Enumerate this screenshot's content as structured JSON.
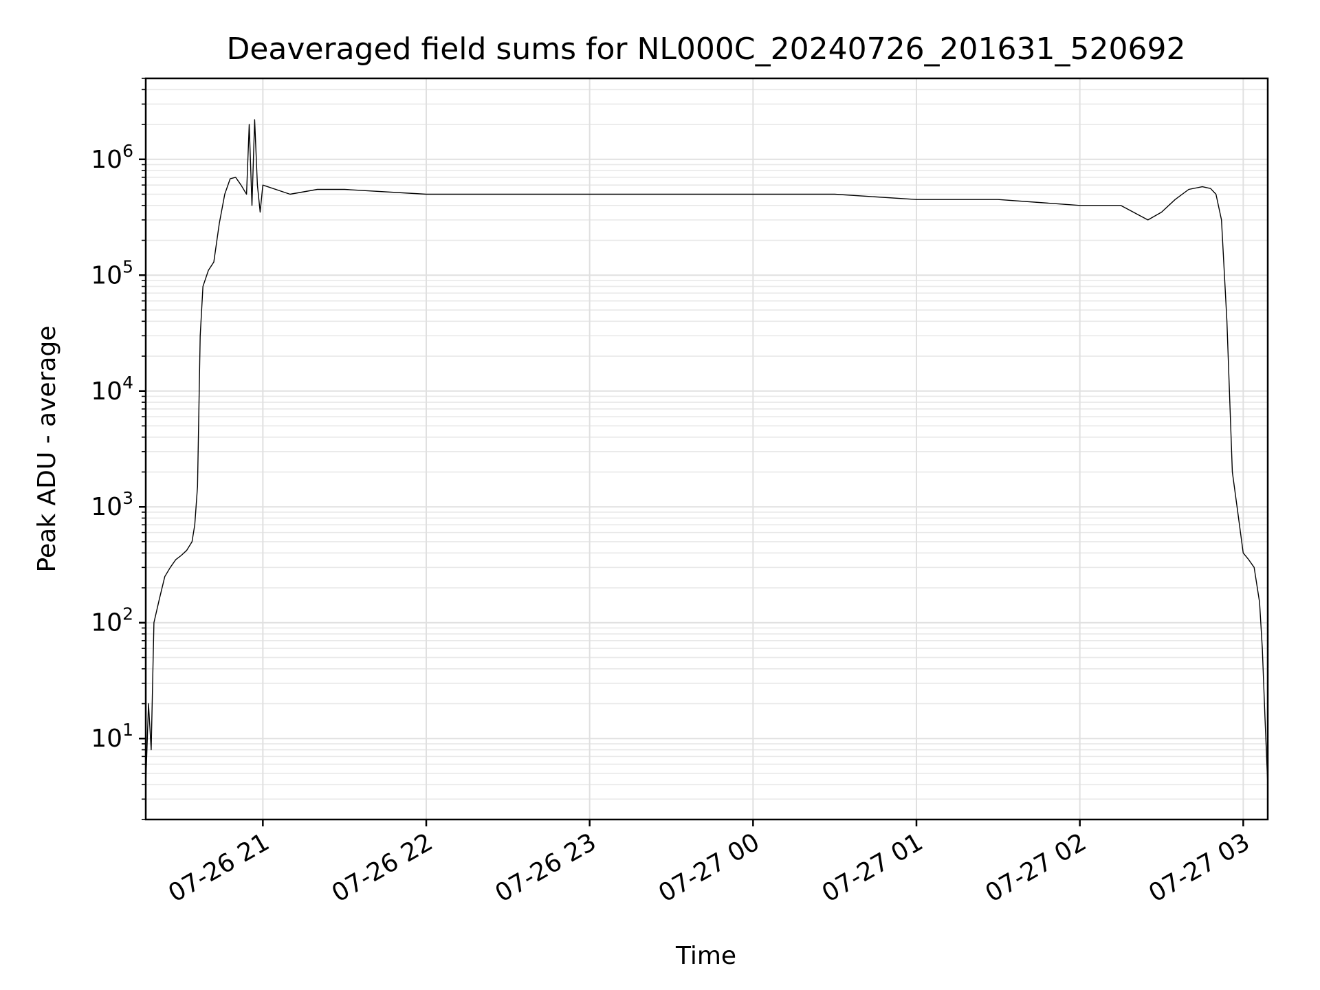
{
  "chart_data": {
    "type": "line",
    "title": "Deaveraged field sums for NL000C_20240726_201631_520692",
    "xlabel": "Time",
    "ylabel": "Peak ADU - average",
    "yscale": "log",
    "ylim": [
      2,
      5000000
    ],
    "xlim": [
      "07-26 20:17",
      "07-27 03:09"
    ],
    "x_ticks": [
      "07-26 21",
      "07-26 22",
      "07-26 23",
      "07-27 00",
      "07-27 01",
      "07-27 02",
      "07-27 03"
    ],
    "y_ticks": [
      {
        "base": "10",
        "exp": "1",
        "value": 10
      },
      {
        "base": "10",
        "exp": "2",
        "value": 100
      },
      {
        "base": "10",
        "exp": "3",
        "value": 1000
      },
      {
        "base": "10",
        "exp": "4",
        "value": 10000
      },
      {
        "base": "10",
        "exp": "5",
        "value": 100000
      },
      {
        "base": "10",
        "exp": "6",
        "value": 1000000
      }
    ],
    "grid": true,
    "legend": "none",
    "line_color": "#000000",
    "series": [
      {
        "x": [
          "07-26 20:17",
          "07-26 20:18",
          "07-26 20:19",
          "07-26 20:20",
          "07-26 20:22",
          "07-26 20:24",
          "07-26 20:26",
          "07-26 20:28",
          "07-26 20:30",
          "07-26 20:32",
          "07-26 20:34",
          "07-26 20:35",
          "07-26 20:36",
          "07-26 20:37",
          "07-26 20:38",
          "07-26 20:40",
          "07-26 20:42",
          "07-26 20:44",
          "07-26 20:46",
          "07-26 20:48",
          "07-26 20:50",
          "07-26 20:52",
          "07-26 20:54",
          "07-26 20:55",
          "07-26 20:56",
          "07-26 20:57",
          "07-26 20:58",
          "07-26 20:59",
          "07-26 21:00",
          "07-26 21:10",
          "07-26 21:20",
          "07-26 21:30",
          "07-26 22:00",
          "07-26 22:30",
          "07-26 23:00",
          "07-26 23:30",
          "07-27 00:00",
          "07-27 00:30",
          "07-27 01:00",
          "07-27 01:30",
          "07-27 02:00",
          "07-27 02:15",
          "07-27 02:25",
          "07-27 02:30",
          "07-27 02:35",
          "07-27 02:40",
          "07-27 02:45",
          "07-27 02:48",
          "07-27 02:50",
          "07-27 02:52",
          "07-27 02:54",
          "07-27 02:56",
          "07-27 02:58",
          "07-27 03:00",
          "07-27 03:02",
          "07-27 03:04",
          "07-27 03:06",
          "07-27 03:07",
          "07-27 03:08",
          "07-27 03:09"
        ],
        "y": [
          4,
          20,
          8,
          100,
          160,
          250,
          300,
          350,
          380,
          420,
          500,
          700,
          1500,
          30000,
          80000,
          110000,
          130000,
          280000,
          500000,
          680000,
          700000,
          600000,
          500000,
          2000000,
          400000,
          2200000,
          600000,
          350000,
          600000,
          500000,
          550000,
          550000,
          500000,
          500000,
          500000,
          500000,
          500000,
          500000,
          450000,
          450000,
          400000,
          400000,
          300000,
          350000,
          450000,
          550000,
          580000,
          560000,
          500000,
          300000,
          40000,
          2000,
          900,
          400,
          350,
          300,
          150,
          60,
          15,
          4
        ]
      }
    ]
  }
}
